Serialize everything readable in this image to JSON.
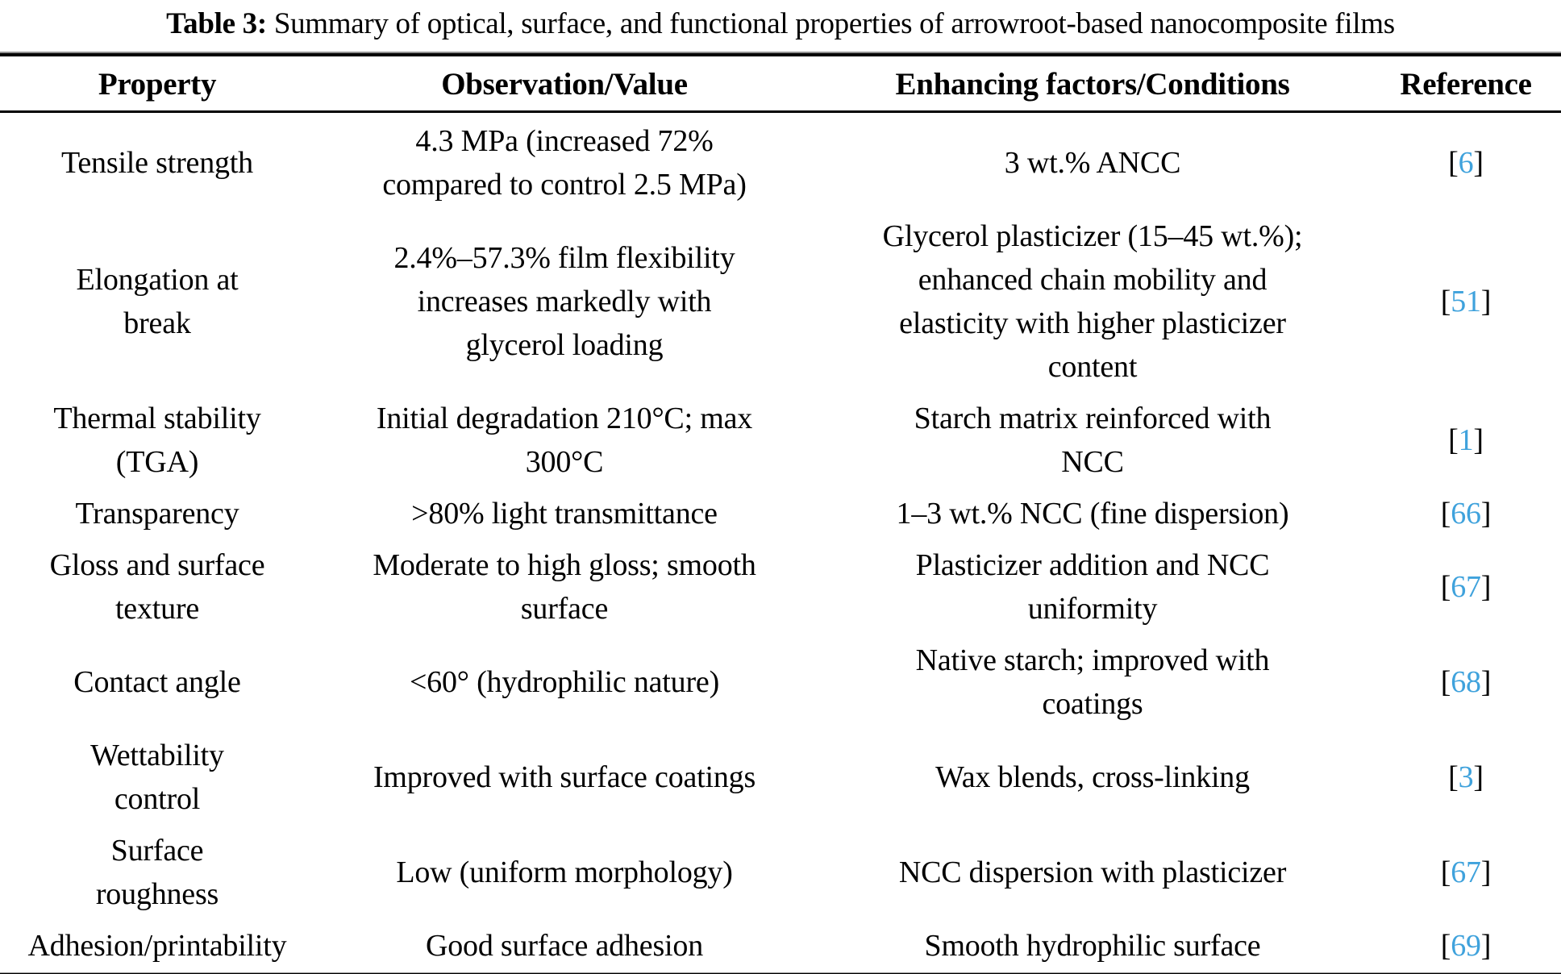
{
  "title": {
    "label": "Table 3:",
    "text": " Summary of optical, surface, and functional properties of arrowroot-based nanocomposite films"
  },
  "table": {
    "columns": [
      {
        "label": "Property"
      },
      {
        "label": "Observation/Value"
      },
      {
        "label": "Enhancing factors/Conditions"
      },
      {
        "label": "Reference"
      }
    ],
    "bracket_open": "[",
    "bracket_close": "]",
    "rows": [
      {
        "property": "Tensile strength",
        "observation": "4.3 MPa (increased 72%\ncompared to control 2.5 MPa)",
        "factors": "3 wt.% ANCC",
        "reference": "6"
      },
      {
        "property": "Elongation at\nbreak",
        "observation": "2.4%–57.3% film flexibility\nincreases markedly with\nglycerol loading",
        "factors": "Glycerol plasticizer (15–45 wt.%);\nenhanced chain mobility and\nelasticity with higher plasticizer\ncontent",
        "reference": "51"
      },
      {
        "property": "Thermal stability\n(TGA)",
        "observation": "Initial degradation 210°C; max\n300°C",
        "factors": "Starch matrix reinforced with\nNCC",
        "reference": "1"
      },
      {
        "property": "Transparency",
        "observation": ">80% light transmittance",
        "factors": "1–3 wt.% NCC (fine dispersion)",
        "reference": "66"
      },
      {
        "property": "Gloss and surface\ntexture",
        "observation": "Moderate to high gloss; smooth\nsurface",
        "factors": "Plasticizer addition and NCC\nuniformity",
        "reference": "67"
      },
      {
        "property": "Contact angle",
        "observation": "<60° (hydrophilic nature)",
        "factors": "Native starch; improved with\ncoatings",
        "reference": "68"
      },
      {
        "property": "Wettability\ncontrol",
        "observation": "Improved with surface coatings",
        "factors": "Wax blends, cross-linking",
        "reference": "3"
      },
      {
        "property": "Surface\nroughness",
        "observation": "Low (uniform morphology)",
        "factors": "NCC dispersion with plasticizer",
        "reference": "67"
      },
      {
        "property": "Adhesion/printability",
        "observation": "Good surface adhesion",
        "factors": "Smooth hydrophilic surface",
        "reference": "69"
      }
    ]
  },
  "colors": {
    "text": "#000000",
    "background": "#ffffff",
    "rule": "#000000",
    "reference_link": "#3fa2dc"
  }
}
